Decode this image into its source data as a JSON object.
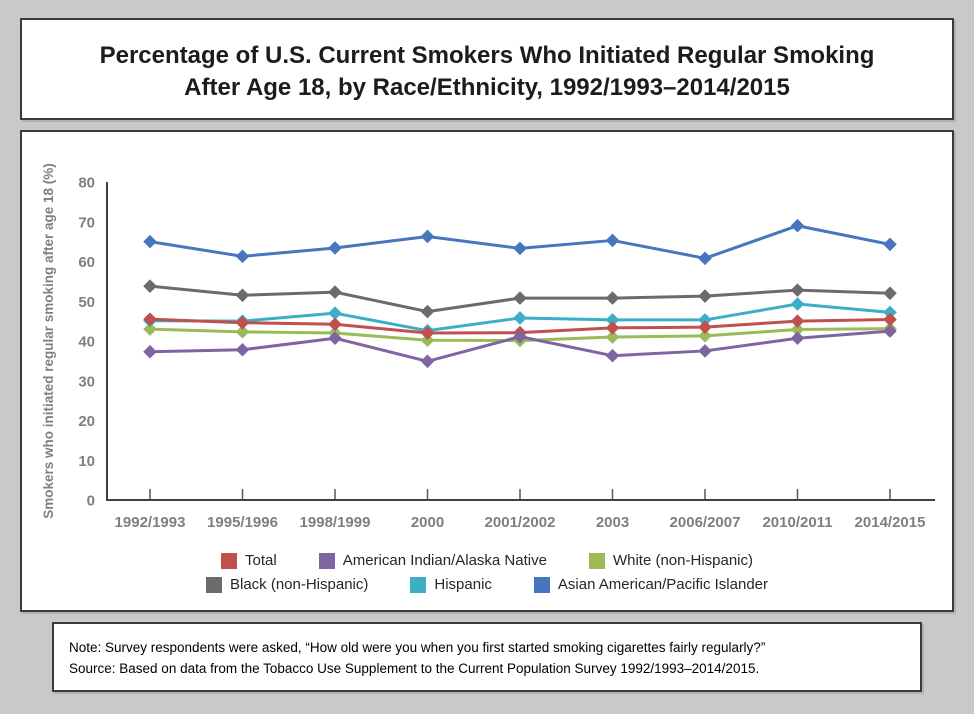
{
  "title": {
    "line1": "Percentage of U.S. Current Smokers Who Initiated Regular Smoking",
    "line2": "After Age 18, by Race/Ethnicity, 1992/1993–2014/2015"
  },
  "chart_data": {
    "type": "line",
    "title": "Percentage of U.S. Current Smokers Who Initiated Regular Smoking After Age 18, by Race/Ethnicity, 1992/1993–2014/2015",
    "categories": [
      "1992/1993",
      "1995/1996",
      "1998/1999",
      "2000",
      "2001/2002",
      "2003",
      "2006/2007",
      "2010/2011",
      "2014/2015"
    ],
    "series": [
      {
        "name": "Total",
        "color": "#c0504d",
        "values": [
          45.5,
          44.6,
          44.2,
          42.0,
          42.1,
          43.3,
          43.5,
          45.0,
          45.4
        ]
      },
      {
        "name": "American Indian/Alaska Native",
        "color": "#8064a2",
        "values": [
          37.3,
          37.8,
          40.7,
          34.9,
          41.1,
          36.3,
          37.5,
          40.7,
          42.5
        ]
      },
      {
        "name": "White (non-Hispanic)",
        "color": "#9bbb59",
        "values": [
          43.0,
          42.3,
          42.0,
          40.2,
          40.1,
          41.0,
          41.3,
          42.9,
          43.1
        ]
      },
      {
        "name": "Black (non-Hispanic)",
        "color": "#6b6b6b",
        "values": [
          53.8,
          51.5,
          52.3,
          47.4,
          50.8,
          50.8,
          51.3,
          52.8,
          52.0
        ]
      },
      {
        "name": "Hispanic",
        "color": "#3caec6",
        "values": [
          45.1,
          45.0,
          47.0,
          42.6,
          45.8,
          45.3,
          45.3,
          49.3,
          47.2
        ]
      },
      {
        "name": "Asian American/Pacific Islander",
        "color": "#4677be",
        "values": [
          65.0,
          61.3,
          63.4,
          66.3,
          63.3,
          65.3,
          60.8,
          69.0,
          64.3
        ]
      }
    ],
    "xlabel": "",
    "ylabel": "Smokers who initiated regular smoking after age 18 (%)",
    "ylim": [
      0,
      80
    ],
    "yticks": [
      0,
      10,
      20,
      30,
      40,
      50,
      60,
      70,
      80
    ],
    "grid": false,
    "marker": "diamond",
    "legend_position": "bottom"
  },
  "notes": {
    "line1": "Note: Survey respondents were asked, “How old were you when you first started smoking cigarettes fairly regularly?”",
    "line2": "Source: Based on data from the Tobacco Use Supplement to the Current Population Survey 1992/1993–2014/2015."
  }
}
